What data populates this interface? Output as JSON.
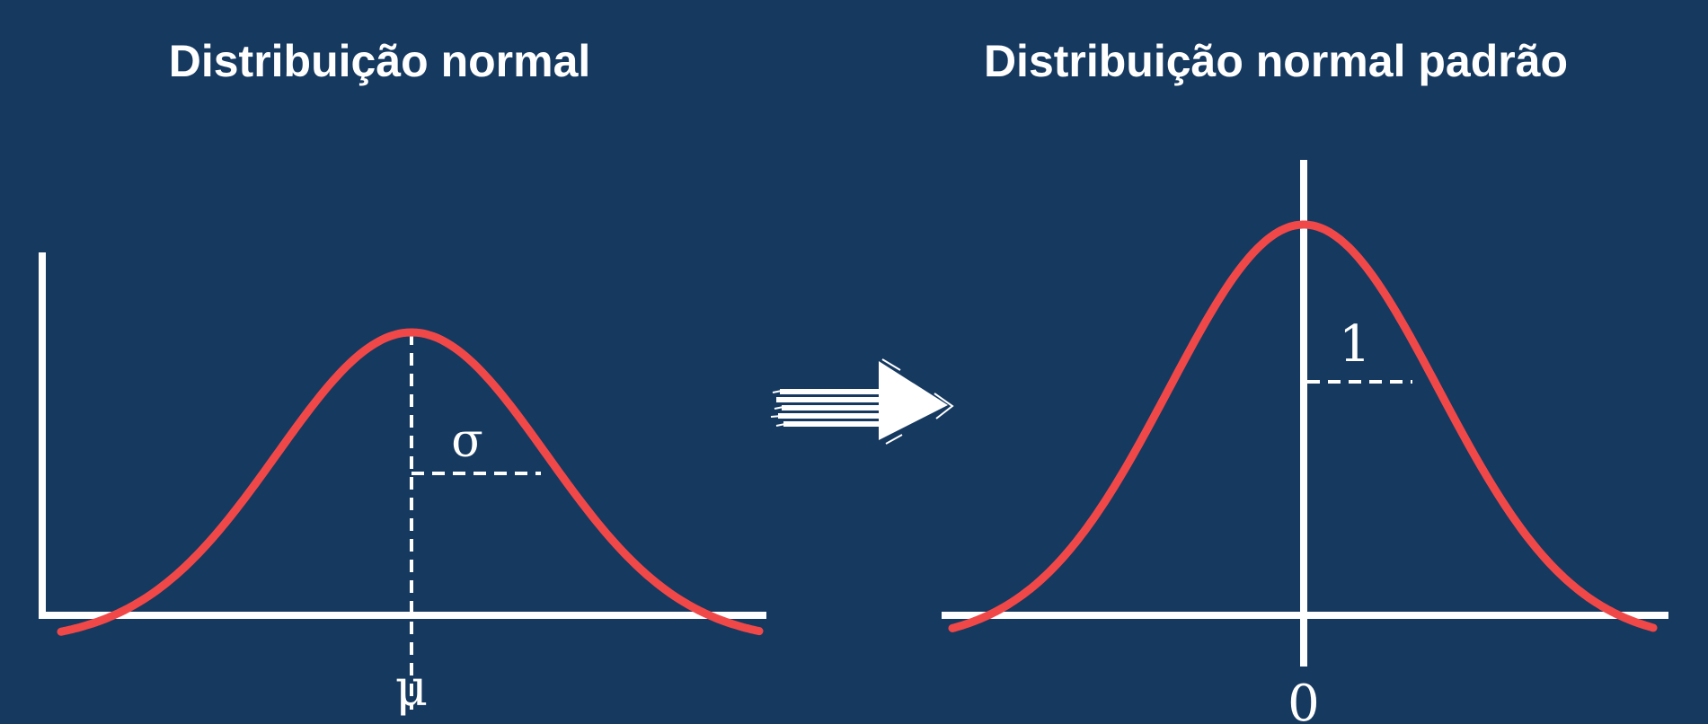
{
  "colors": {
    "background": "#163960",
    "curve": "#f04848",
    "axis": "#ffffff"
  },
  "left_panel": {
    "title": "Distribuição normal",
    "sigma_label": "σ",
    "mu_label": "μ"
  },
  "right_panel": {
    "title": "Distribuição normal padrão",
    "sd_label": "1",
    "zero_label": "0"
  },
  "arrow": {
    "icon": "right-arrow-icon",
    "style": "hand-drawn"
  }
}
